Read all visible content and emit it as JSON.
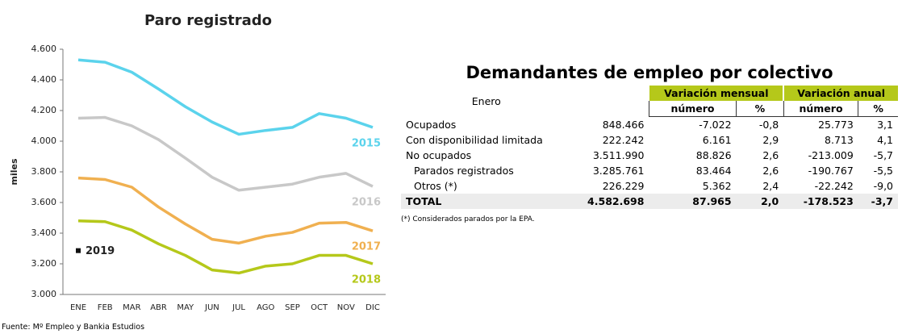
{
  "chart_data": {
    "type": "line",
    "title": "Paro registrado",
    "y_label": "miles",
    "categories": [
      "ENE",
      "FEB",
      "MAR",
      "ABR",
      "MAY",
      "JUN",
      "JUL",
      "AGO",
      "SEP",
      "OCT",
      "NOV",
      "DIC"
    ],
    "ylim": [
      3000,
      4600
    ],
    "yticks": [
      {
        "value": 3000,
        "label": "3.000"
      },
      {
        "value": 3200,
        "label": "3.200"
      },
      {
        "value": 3400,
        "label": "3.400"
      },
      {
        "value": 3600,
        "label": "3.600"
      },
      {
        "value": 3800,
        "label": "3.800"
      },
      {
        "value": 4000,
        "label": "4.000"
      },
      {
        "value": 4200,
        "label": "4.200"
      },
      {
        "value": 4400,
        "label": "4.400"
      },
      {
        "value": 4600,
        "label": "4.600"
      }
    ],
    "series": [
      {
        "name": "2015",
        "color": "#5bd3ec",
        "values": [
          4530,
          4515,
          4450,
          4340,
          4225,
          4125,
          4045,
          4070,
          4090,
          4180,
          4150,
          4090
        ]
      },
      {
        "name": "2016",
        "color": "#c8c8c8",
        "values": [
          4150,
          4155,
          4100,
          4010,
          3890,
          3765,
          3680,
          3700,
          3720,
          3765,
          3790,
          3705
        ]
      },
      {
        "name": "2017",
        "color": "#f0b050",
        "values": [
          3760,
          3750,
          3700,
          3570,
          3460,
          3360,
          3335,
          3380,
          3405,
          3465,
          3470,
          3415
        ]
      },
      {
        "name": "2018",
        "color": "#b5c81a",
        "values": [
          3480,
          3475,
          3420,
          3330,
          3255,
          3160,
          3140,
          3185,
          3200,
          3255,
          3255,
          3200
        ]
      },
      {
        "name": "2019",
        "color": "#111111",
        "marker": "square",
        "values": [
          3286,
          null,
          null,
          null,
          null,
          null,
          null,
          null,
          null,
          null,
          null,
          null
        ]
      }
    ]
  },
  "table": {
    "title": "Demandantes de empleo por colectivo",
    "corner": "Enero",
    "groups": [
      "Variación mensual",
      "Variación anual"
    ],
    "columns": [
      "número",
      "%",
      "número",
      "%"
    ],
    "rows": [
      [
        "Ocupados",
        "848.466",
        "-7.022",
        "-0,8",
        "25.773",
        "3,1"
      ],
      [
        "Con disponibilidad limitada",
        "222.242",
        "6.161",
        "2,9",
        "8.713",
        "4,1"
      ],
      [
        "No ocupados",
        "3.511.990",
        "88.826",
        "2,6",
        "-213.009",
        "-5,7"
      ],
      [
        "Parados registrados",
        "3.285.761",
        "83.464",
        "2,6",
        "-190.767",
        "-5,5"
      ],
      [
        "Otros (*)",
        "226.229",
        "5.362",
        "2,4",
        "-22.242",
        "-9,0"
      ],
      [
        "TOTAL",
        "4.582.698",
        "87.965",
        "2,0",
        "-178.523",
        "-3,7"
      ]
    ],
    "footnote": "(*) Considerados parados por la EPA."
  },
  "source": "Fuente: Mº Empleo y Bankia Estudios"
}
